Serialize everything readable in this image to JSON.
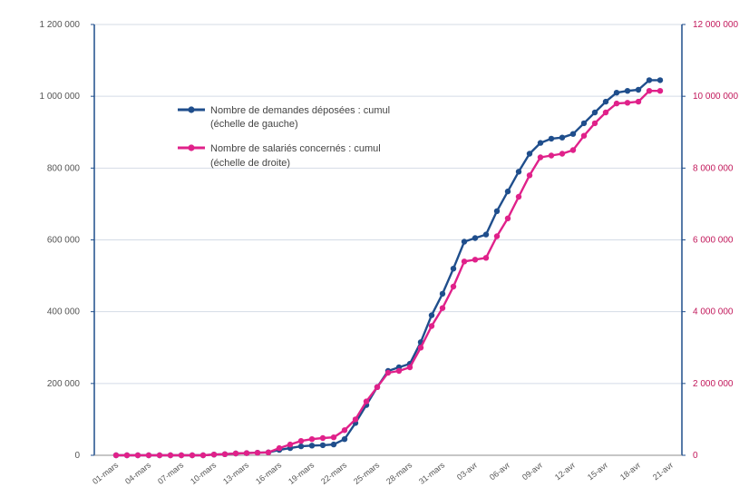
{
  "chart_data": {
    "type": "line",
    "x_tick_labels": [
      "01-mars",
      "04-mars",
      "07-mars",
      "10-mars",
      "13-mars",
      "16-mars",
      "19-mars",
      "22-mars",
      "25-mars",
      "28-mars",
      "31-mars",
      "03-avr",
      "06-avr",
      "09-avr",
      "12-avr",
      "15-avr",
      "18-avr",
      "21-avr"
    ],
    "series": [
      {
        "name": "Nombre de demandes déposées : cumul",
        "name_line2": "(échelle de gauche)",
        "axis": "left",
        "color": "#1f4e8c",
        "values": [
          0,
          0,
          0,
          0,
          0,
          0,
          0,
          0,
          0,
          2000,
          3000,
          5000,
          6000,
          7000,
          8000,
          15000,
          20000,
          25000,
          27000,
          28000,
          30000,
          45000,
          90000,
          140000,
          190000,
          235000,
          245000,
          255000,
          315000,
          390000,
          450000,
          520000,
          595000,
          605000,
          615000,
          680000,
          735000,
          790000,
          840000,
          870000,
          882000,
          885000,
          895000,
          925000,
          955000,
          985000,
          1010000,
          1015000,
          1018000,
          1045000,
          1045000
        ]
      },
      {
        "name": "Nombre de salariés concernés : cumul",
        "name_line2": "(échelle de droite)",
        "axis": "right",
        "color": "#e0218a",
        "values": [
          0,
          0,
          0,
          0,
          0,
          0,
          0,
          0,
          0,
          20000,
          30000,
          50000,
          60000,
          70000,
          80000,
          200000,
          300000,
          400000,
          450000,
          480000,
          500000,
          700000,
          1000000,
          1500000,
          1900000,
          2300000,
          2350000,
          2450000,
          3000000,
          3600000,
          4100000,
          4700000,
          5400000,
          5450000,
          5500000,
          6100000,
          6600000,
          7200000,
          7800000,
          8300000,
          8350000,
          8400000,
          8500000,
          8900000,
          9250000,
          9550000,
          9800000,
          9820000,
          9850000,
          10150000,
          10150000
        ]
      }
    ],
    "y_left": {
      "min": 0,
      "max": 1200000,
      "ticks": [
        "0",
        "200 000",
        "400 000",
        "600 000",
        "800 000",
        "1 000 000",
        "1 200 000"
      ]
    },
    "y_right": {
      "min": 0,
      "max": 12000000,
      "ticks": [
        "0",
        "2 000 000",
        "4 000 000",
        "6 000 000",
        "8 000 000",
        "10 000 000",
        "12 000 000"
      ]
    },
    "grid": true,
    "legend_position": "upper-left inside plot"
  }
}
